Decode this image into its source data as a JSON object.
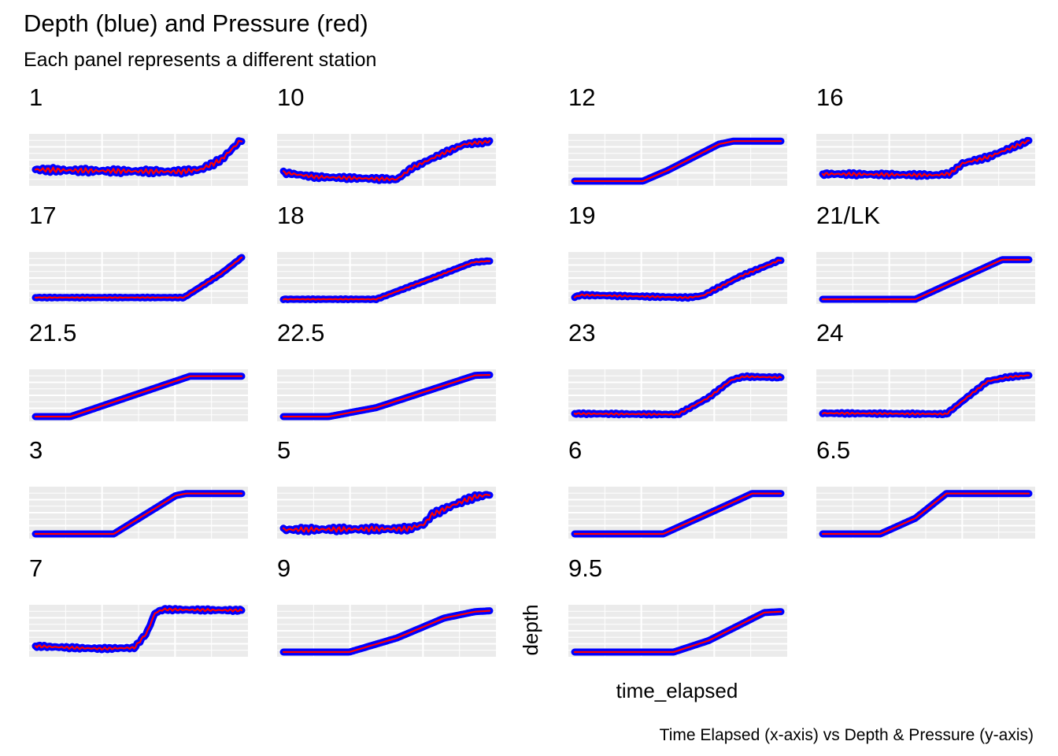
{
  "title": "Depth (blue) and Pressure (red)",
  "subtitle": "Each panel represents a different station",
  "caption": "Time Elapsed (x-axis) vs Depth & Pressure (y-axis)",
  "xlabel": "time_elapsed",
  "ylabel": "depth",
  "colors": {
    "depth": "#0000FF",
    "pressure": "#FF0000",
    "panel_bg": "#EBEBEB",
    "grid": "#FFFFFF"
  },
  "chart_data": {
    "type": "line",
    "layout": "facet_wrap",
    "series_encoding": {
      "depth": "blue",
      "pressure": "red"
    },
    "panels": [
      {
        "label": "1",
        "profile": [
          [
            0,
            0.27
          ],
          [
            0.3,
            0.24
          ],
          [
            0.7,
            0.22
          ],
          [
            0.8,
            0.27
          ],
          [
            0.9,
            0.5
          ],
          [
            1,
            0.98
          ]
        ],
        "noise": 0.06
      },
      {
        "label": "10",
        "profile": [
          [
            0,
            0.2
          ],
          [
            0.15,
            0.1
          ],
          [
            0.55,
            0.04
          ],
          [
            0.62,
            0.3
          ],
          [
            0.75,
            0.6
          ],
          [
            0.88,
            0.87
          ],
          [
            1,
            0.93
          ]
        ],
        "noise": 0.04
      },
      {
        "label": "12",
        "profile": [
          [
            0,
            0
          ],
          [
            0.33,
            0
          ],
          [
            0.45,
            0.25
          ],
          [
            0.7,
            0.87
          ],
          [
            0.77,
            0.94
          ],
          [
            1,
            0.94
          ]
        ],
        "noise": 0
      },
      {
        "label": "16",
        "profile": [
          [
            0,
            0.17
          ],
          [
            0.55,
            0.14
          ],
          [
            0.62,
            0.18
          ],
          [
            0.68,
            0.42
          ],
          [
            0.8,
            0.56
          ],
          [
            1,
            0.95
          ]
        ],
        "noise": 0.04
      },
      {
        "label": "17",
        "profile": [
          [
            0,
            0.04
          ],
          [
            0.72,
            0.04
          ],
          [
            0.9,
            0.6
          ],
          [
            1,
            0.98
          ]
        ],
        "noise": 0.01
      },
      {
        "label": "18",
        "profile": [
          [
            0,
            0
          ],
          [
            0.45,
            0
          ],
          [
            0.75,
            0.55
          ],
          [
            0.92,
            0.87
          ],
          [
            1,
            0.9
          ]
        ],
        "noise": 0.01
      },
      {
        "label": "19",
        "profile": [
          [
            0,
            0.05
          ],
          [
            0.03,
            0.1
          ],
          [
            0.55,
            0.04
          ],
          [
            0.62,
            0.08
          ],
          [
            0.8,
            0.53
          ],
          [
            1,
            0.93
          ]
        ],
        "noise": 0.02
      },
      {
        "label": "21/LK",
        "profile": [
          [
            0,
            0
          ],
          [
            0.45,
            0
          ],
          [
            0.87,
            0.93
          ],
          [
            1,
            0.93
          ]
        ],
        "noise": 0
      },
      {
        "label": "21.5",
        "profile": [
          [
            0,
            0
          ],
          [
            0.17,
            0
          ],
          [
            0.75,
            0.95
          ],
          [
            1,
            0.95
          ]
        ],
        "noise": 0
      },
      {
        "label": "22.5",
        "profile": [
          [
            0,
            0
          ],
          [
            0.22,
            0
          ],
          [
            0.45,
            0.21
          ],
          [
            0.93,
            0.97
          ],
          [
            1,
            0.98
          ]
        ],
        "noise": 0
      },
      {
        "label": "23",
        "profile": [
          [
            0,
            0.07
          ],
          [
            0.5,
            0.05
          ],
          [
            0.65,
            0.45
          ],
          [
            0.76,
            0.86
          ],
          [
            0.82,
            0.94
          ],
          [
            1,
            0.92
          ]
        ],
        "noise": 0.02
      },
      {
        "label": "24",
        "profile": [
          [
            0,
            0.08
          ],
          [
            0.6,
            0.06
          ],
          [
            0.7,
            0.45
          ],
          [
            0.8,
            0.83
          ],
          [
            0.9,
            0.93
          ],
          [
            1,
            0.97
          ]
        ],
        "noise": 0.02
      },
      {
        "label": "3",
        "profile": [
          [
            0,
            0
          ],
          [
            0.38,
            0
          ],
          [
            0.68,
            0.9
          ],
          [
            0.73,
            0.95
          ],
          [
            1,
            0.95
          ]
        ],
        "noise": 0
      },
      {
        "label": "5",
        "profile": [
          [
            0,
            0.1
          ],
          [
            0.6,
            0.12
          ],
          [
            0.68,
            0.22
          ],
          [
            0.72,
            0.45
          ],
          [
            0.82,
            0.67
          ],
          [
            0.92,
            0.86
          ],
          [
            1,
            0.93
          ]
        ],
        "noise": 0.06
      },
      {
        "label": "6",
        "profile": [
          [
            0,
            0
          ],
          [
            0.43,
            0
          ],
          [
            0.78,
            0.77
          ],
          [
            0.86,
            0.95
          ],
          [
            1,
            0.95
          ]
        ],
        "noise": 0
      },
      {
        "label": "6.5",
        "profile": [
          [
            0,
            0
          ],
          [
            0.28,
            0
          ],
          [
            0.45,
            0.37
          ],
          [
            0.6,
            0.95
          ],
          [
            1,
            0.95
          ]
        ],
        "noise": 0
      },
      {
        "label": "7",
        "profile": [
          [
            0,
            0.14
          ],
          [
            0.18,
            0.1
          ],
          [
            0.32,
            0.08
          ],
          [
            0.48,
            0.1
          ],
          [
            0.54,
            0.45
          ],
          [
            0.58,
            0.92
          ],
          [
            0.62,
            1.0
          ],
          [
            1,
            0.98
          ]
        ],
        "noise": 0.03
      },
      {
        "label": "9",
        "profile": [
          [
            0,
            0
          ],
          [
            0.32,
            0
          ],
          [
            0.55,
            0.33
          ],
          [
            0.78,
            0.8
          ],
          [
            0.93,
            0.95
          ],
          [
            1,
            0.97
          ]
        ],
        "noise": 0
      },
      {
        "label": "9.5",
        "profile": [
          [
            0,
            0
          ],
          [
            0.48,
            0
          ],
          [
            0.65,
            0.27
          ],
          [
            0.92,
            0.93
          ],
          [
            1,
            0.95
          ]
        ],
        "noise": 0
      }
    ]
  }
}
